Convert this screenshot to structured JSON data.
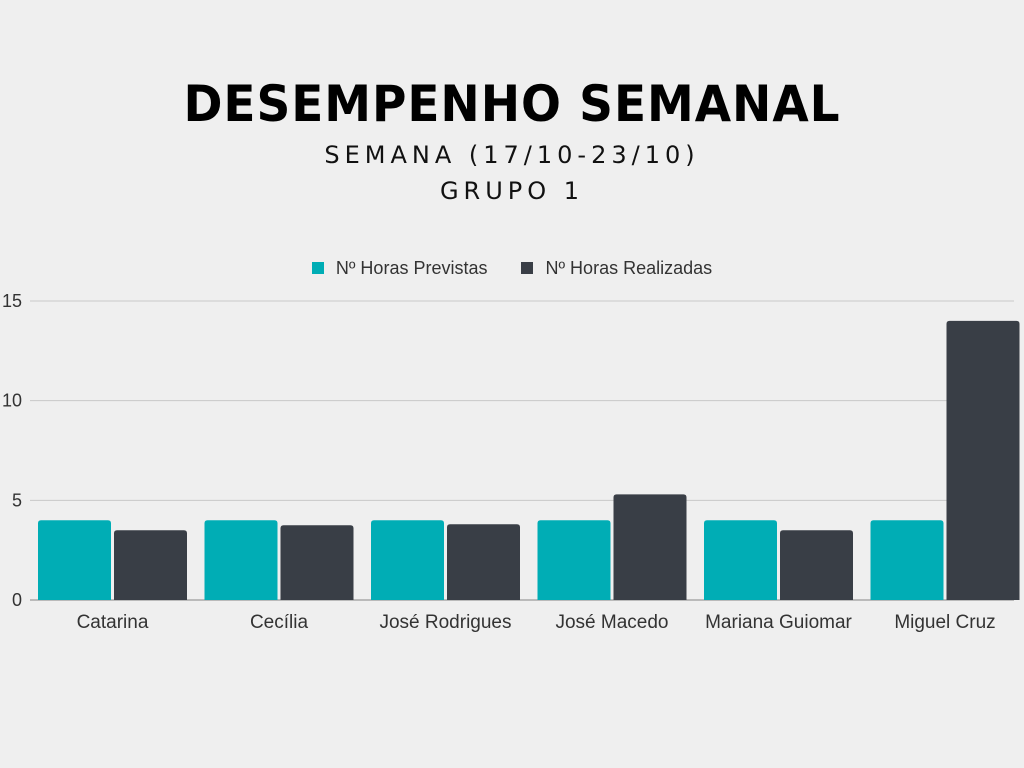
{
  "chart_data": {
    "type": "bar",
    "title": "DESEMPENHO SEMANAL",
    "subtitle_lines": [
      "SEMANA (17/10-23/10)",
      "GRUPO 1"
    ],
    "categories": [
      "Catarina",
      "Cecília",
      "José Rodrigues",
      "José Macedo",
      "Mariana Guiomar",
      "Miguel Cruz"
    ],
    "series": [
      {
        "name": "Nº Horas Previstas",
        "color": "#00adb5",
        "values": [
          4,
          4,
          4,
          4,
          4,
          4
        ]
      },
      {
        "name": "Nº Horas Realizadas",
        "color": "#393e46",
        "values": [
          3.5,
          3.75,
          3.8,
          5.3,
          3.5,
          14
        ]
      }
    ],
    "xlabel": "",
    "ylabel": "",
    "ylim": [
      0,
      15
    ],
    "yticks": [
      0,
      5,
      10,
      15
    ],
    "grid": true,
    "legend_position": "top-center"
  }
}
